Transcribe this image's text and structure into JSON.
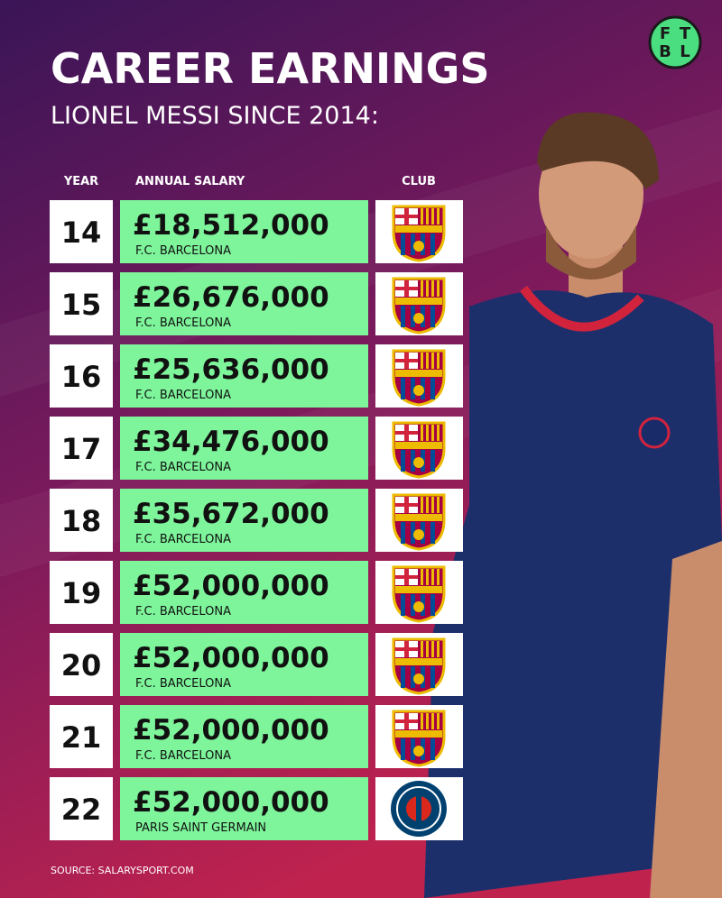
{
  "header": {
    "title": "CAREER EARNINGS",
    "subtitle": "LIONEL MESSI SINCE 2014:",
    "logo": [
      "F",
      "T",
      "B",
      "L"
    ]
  },
  "table": {
    "headers": [
      "YEAR",
      "ANNUAL SALARY",
      "CLUB"
    ],
    "rows": [
      {
        "year": "14",
        "salary": "£18,512,000",
        "club": "F.C. BARCELONA"
      },
      {
        "year": "15",
        "salary": "£26,676,000",
        "club": "F.C. BARCELONA"
      },
      {
        "year": "16",
        "salary": "£25,636,000",
        "club": "F.C. BARCELONA"
      },
      {
        "year": "17",
        "salary": "£34,476,000",
        "club": "F.C. BARCELONA"
      },
      {
        "year": "18",
        "salary": "£35,672,000",
        "club": "F.C. BARCELONA"
      },
      {
        "year": "19",
        "salary": "£52,000,000",
        "club": "F.C. BARCELONA"
      },
      {
        "year": "20",
        "salary": "£52,000,000",
        "club": "F.C. BARCELONA"
      },
      {
        "year": "21",
        "salary": "£52,000,000",
        "club": "F.C. BARCELONA"
      },
      {
        "year": "22",
        "salary": "£52,000,000",
        "club": "PARIS SAINT GERMAIN"
      }
    ]
  },
  "footer": {
    "source": "SOURCE: SALARYSPORT.COM"
  }
}
